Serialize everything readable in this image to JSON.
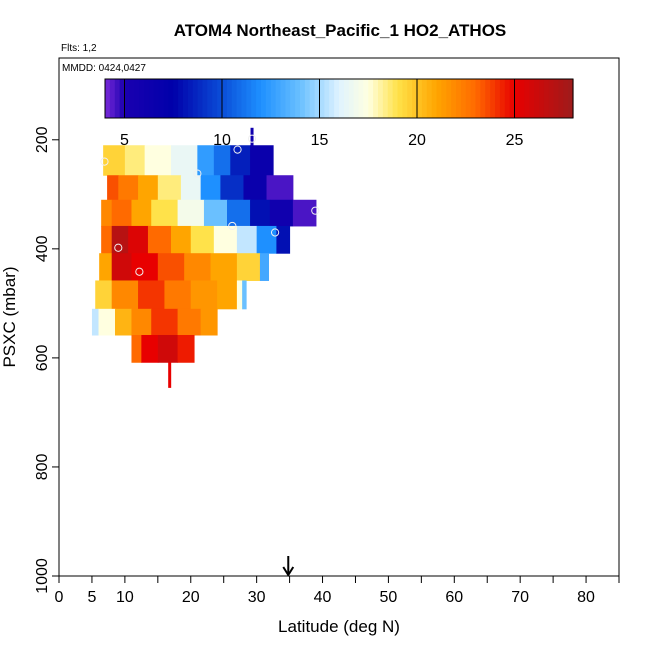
{
  "chart_data": {
    "type": "heatmap",
    "title": "ATOM4 Northeast_Pacific_1 HO2_ATHOS",
    "flights_note": "Flts: 1,2",
    "date_note": "MMDD: 0424,0427",
    "xlabel": "Latitude (deg N)",
    "ylabel": "PSXC (mbar)",
    "xlim": [
      0,
      85
    ],
    "ylim": [
      1000,
      50
    ],
    "y_reversed": true,
    "x_ticks": [
      0,
      5,
      10,
      20,
      30,
      40,
      50,
      60,
      70,
      80
    ],
    "x_minor_ticks": [
      15,
      25,
      35,
      45,
      55,
      65,
      75,
      85
    ],
    "y_ticks": [
      200,
      400,
      600,
      800,
      1000
    ],
    "colorbar": {
      "min": 4,
      "max": 28,
      "ticks": [
        5,
        10,
        15,
        20,
        25
      ],
      "stops": [
        {
          "v": 4.0,
          "c": "#7a2ad9"
        },
        {
          "v": 5.0,
          "c": "#1a00b0"
        },
        {
          "v": 7.5,
          "c": "#0000aa"
        },
        {
          "v": 10.0,
          "c": "#0a4ed8"
        },
        {
          "v": 12.0,
          "c": "#1e90ff"
        },
        {
          "v": 14.0,
          "c": "#6ac0ff"
        },
        {
          "v": 16.0,
          "c": "#dff3ff"
        },
        {
          "v": 17.5,
          "c": "#ffffe0"
        },
        {
          "v": 19.0,
          "c": "#ffe24a"
        },
        {
          "v": 21.0,
          "c": "#ffa500"
        },
        {
          "v": 23.0,
          "c": "#ff6a00"
        },
        {
          "v": 25.0,
          "c": "#e80000"
        },
        {
          "v": 28.0,
          "c": "#9e1b1b"
        }
      ]
    },
    "bands": [
      {
        "p_top": 210,
        "p_bot": 265,
        "cells": [
          {
            "x0": 6.7,
            "x1": 10,
            "v": 19.5
          },
          {
            "x0": 10,
            "x1": 13,
            "v": 18.5
          },
          {
            "x0": 13,
            "x1": 17,
            "v": 17.5
          },
          {
            "x0": 17,
            "x1": 21,
            "v": 16.5
          },
          {
            "x0": 21,
            "x1": 23.5,
            "v": 12.5
          },
          {
            "x0": 23.5,
            "x1": 26,
            "v": 11
          },
          {
            "x0": 26,
            "x1": 29,
            "v": 8.5
          },
          {
            "x0": 29,
            "x1": 32.5,
            "v": 6.5
          }
        ]
      },
      {
        "p_top": 265,
        "p_bot": 310,
        "cells": [
          {
            "x0": 7.3,
            "x1": 9,
            "v": 23.5
          },
          {
            "x0": 9,
            "x1": 12,
            "v": 22.5
          },
          {
            "x0": 12,
            "x1": 15,
            "v": 21
          },
          {
            "x0": 15,
            "x1": 18.5,
            "v": 18.5
          },
          {
            "x0": 18.5,
            "x1": 21.5,
            "v": 16.5
          },
          {
            "x0": 21.5,
            "x1": 24.5,
            "v": 12
          },
          {
            "x0": 24.5,
            "x1": 28,
            "v": 9
          },
          {
            "x0": 28,
            "x1": 31.5,
            "v": 6.5
          },
          {
            "x0": 31.5,
            "x1": 35.5,
            "v": 4.5
          }
        ]
      },
      {
        "p_top": 310,
        "p_bot": 358,
        "cells": [
          {
            "x0": 6.4,
            "x1": 8,
            "v": 22
          },
          {
            "x0": 8,
            "x1": 11,
            "v": 23
          },
          {
            "x0": 11,
            "x1": 14,
            "v": 21
          },
          {
            "x0": 14,
            "x1": 18,
            "v": 19
          },
          {
            "x0": 18,
            "x1": 22,
            "v": 17
          },
          {
            "x0": 22,
            "x1": 25.5,
            "v": 14
          },
          {
            "x0": 25.5,
            "x1": 29,
            "v": 11
          },
          {
            "x0": 29,
            "x1": 32,
            "v": 8
          },
          {
            "x0": 32,
            "x1": 35.5,
            "v": 6
          },
          {
            "x0": 35.5,
            "x1": 39,
            "v": 4.5
          }
        ]
      },
      {
        "p_top": 358,
        "p_bot": 408,
        "cells": [
          {
            "x0": 6.4,
            "x1": 8,
            "v": 23
          },
          {
            "x0": 8,
            "x1": 10.5,
            "v": 27
          },
          {
            "x0": 10.5,
            "x1": 13.5,
            "v": 25.5
          },
          {
            "x0": 13.5,
            "x1": 17,
            "v": 23
          },
          {
            "x0": 17,
            "x1": 20,
            "v": 21
          },
          {
            "x0": 20,
            "x1": 23.5,
            "v": 19
          },
          {
            "x0": 23.5,
            "x1": 27,
            "v": 17.5
          },
          {
            "x0": 27,
            "x1": 30,
            "v": 15.5
          },
          {
            "x0": 30,
            "x1": 33,
            "v": 12
          },
          {
            "x0": 33,
            "x1": 35,
            "v": 8
          }
        ]
      },
      {
        "p_top": 408,
        "p_bot": 458,
        "cells": [
          {
            "x0": 6.1,
            "x1": 8,
            "v": 21
          },
          {
            "x0": 8,
            "x1": 11,
            "v": 26
          },
          {
            "x0": 11,
            "x1": 15,
            "v": 25
          },
          {
            "x0": 15,
            "x1": 19,
            "v": 23.5
          },
          {
            "x0": 19,
            "x1": 23,
            "v": 22
          },
          {
            "x0": 23,
            "x1": 27,
            "v": 21
          },
          {
            "x0": 27,
            "x1": 30.5,
            "v": 19.5
          },
          {
            "x0": 30.5,
            "x1": 31.8,
            "v": 13
          }
        ]
      },
      {
        "p_top": 458,
        "p_bot": 510,
        "cells": [
          {
            "x0": 5.5,
            "x1": 8,
            "v": 19.5
          },
          {
            "x0": 8,
            "x1": 12,
            "v": 22
          },
          {
            "x0": 12,
            "x1": 16,
            "v": 24
          },
          {
            "x0": 16,
            "x1": 20,
            "v": 22.5
          },
          {
            "x0": 20,
            "x1": 24,
            "v": 21.5
          },
          {
            "x0": 24,
            "x1": 27,
            "v": 21
          },
          {
            "x0": 27,
            "x1": 27.8,
            "v": 17.5
          },
          {
            "x0": 27.8,
            "x1": 28.4,
            "v": 14
          }
        ]
      },
      {
        "p_top": 510,
        "p_bot": 558,
        "cells": [
          {
            "x0": 5.0,
            "x1": 6,
            "v": 15.5
          },
          {
            "x0": 6,
            "x1": 8.5,
            "v": 17.5
          },
          {
            "x0": 8.5,
            "x1": 11,
            "v": 20.5
          },
          {
            "x0": 11,
            "x1": 14,
            "v": 22
          },
          {
            "x0": 14,
            "x1": 18,
            "v": 24
          },
          {
            "x0": 18,
            "x1": 21.5,
            "v": 22.5
          },
          {
            "x0": 21.5,
            "x1": 24,
            "v": 21.5
          }
        ]
      },
      {
        "p_top": 558,
        "p_bot": 608,
        "cells": [
          {
            "x0": 11,
            "x1": 12.5,
            "v": 23
          },
          {
            "x0": 12.5,
            "x1": 15,
            "v": 25
          },
          {
            "x0": 15,
            "x1": 18,
            "v": 26
          },
          {
            "x0": 18,
            "x1": 20.5,
            "v": 24.5
          }
        ]
      }
    ],
    "spikes": [
      {
        "x": 29.3,
        "p0": 178,
        "p1": 212,
        "v": 6
      },
      {
        "x": 16.8,
        "p0": 608,
        "p1": 655,
        "v": 25
      }
    ],
    "circles": [
      {
        "x": 6.9,
        "p": 240
      },
      {
        "x": 29.3,
        "p": 198
      },
      {
        "x": 27.1,
        "p": 218
      },
      {
        "x": 21.0,
        "p": 262
      },
      {
        "x": 38.9,
        "p": 330
      },
      {
        "x": 26.3,
        "p": 358
      },
      {
        "x": 32.8,
        "p": 370
      },
      {
        "x": 9.0,
        "p": 398
      },
      {
        "x": 12.2,
        "p": 442
      }
    ],
    "arrow_latitude": 34.8
  }
}
